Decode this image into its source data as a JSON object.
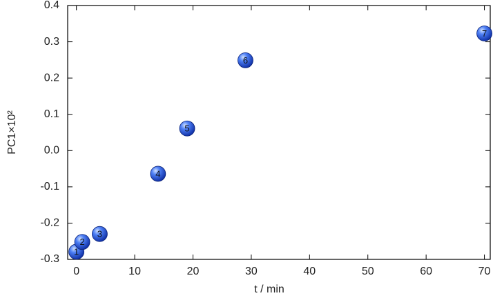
{
  "chart_data": {
    "type": "scatter",
    "x_label": "t / min",
    "y_label": "PC1×10²",
    "x": [
      0,
      1,
      4,
      14,
      19,
      29,
      70
    ],
    "values": [
      -0.279,
      -0.252,
      -0.23,
      -0.064,
      0.061,
      0.249,
      0.323
    ],
    "labels": [
      "1",
      "2",
      "3",
      "4",
      "5",
      "6",
      "7"
    ],
    "color": "#2a5ee8",
    "xlim": [
      -1.5,
      71
    ],
    "ylim": [
      -0.3,
      0.4
    ],
    "xticks": [
      0,
      10,
      20,
      30,
      40,
      50,
      60,
      70
    ],
    "yticks": [
      0.4,
      0.3,
      0.2,
      0.1,
      {
        "value": 0,
        "label": "0.0"
      },
      -0.1,
      -0.2,
      -0.3
    ]
  }
}
